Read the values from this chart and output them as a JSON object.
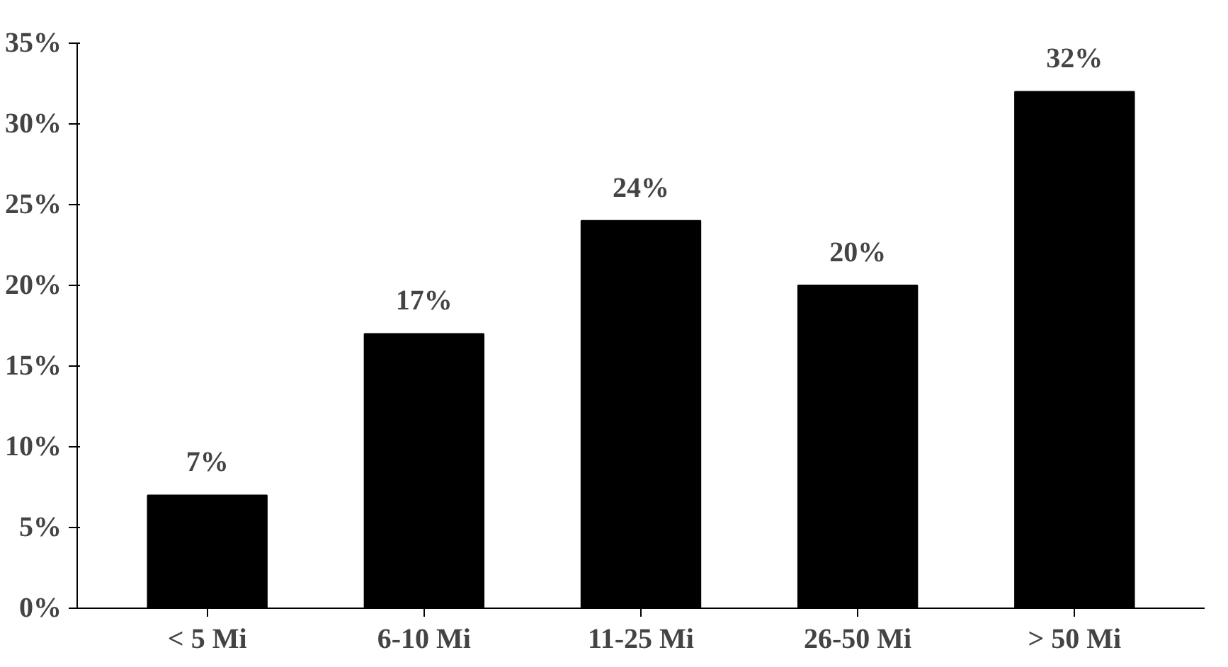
{
  "chart_data": {
    "type": "bar",
    "categories": [
      "< 5 Mi",
      "6-10 Mi",
      "11-25 Mi",
      "26-50 Mi",
      "> 50 Mi"
    ],
    "values": [
      7,
      17,
      24,
      20,
      32
    ],
    "value_labels": [
      "7%",
      "17%",
      "24%",
      "20%",
      "32%"
    ],
    "color": "#000000",
    "ylim": [
      0,
      35
    ],
    "yticks": [
      {
        "value": 0,
        "label": "0%"
      },
      {
        "value": 5,
        "label": "5%"
      },
      {
        "value": 10,
        "label": "10%"
      },
      {
        "value": 15,
        "label": "15%"
      },
      {
        "value": 20,
        "label": "20%"
      },
      {
        "value": 25,
        "label": "25%"
      },
      {
        "value": 30,
        "label": "30%"
      },
      {
        "value": 35,
        "label": "35%"
      }
    ],
    "grid": false
  }
}
